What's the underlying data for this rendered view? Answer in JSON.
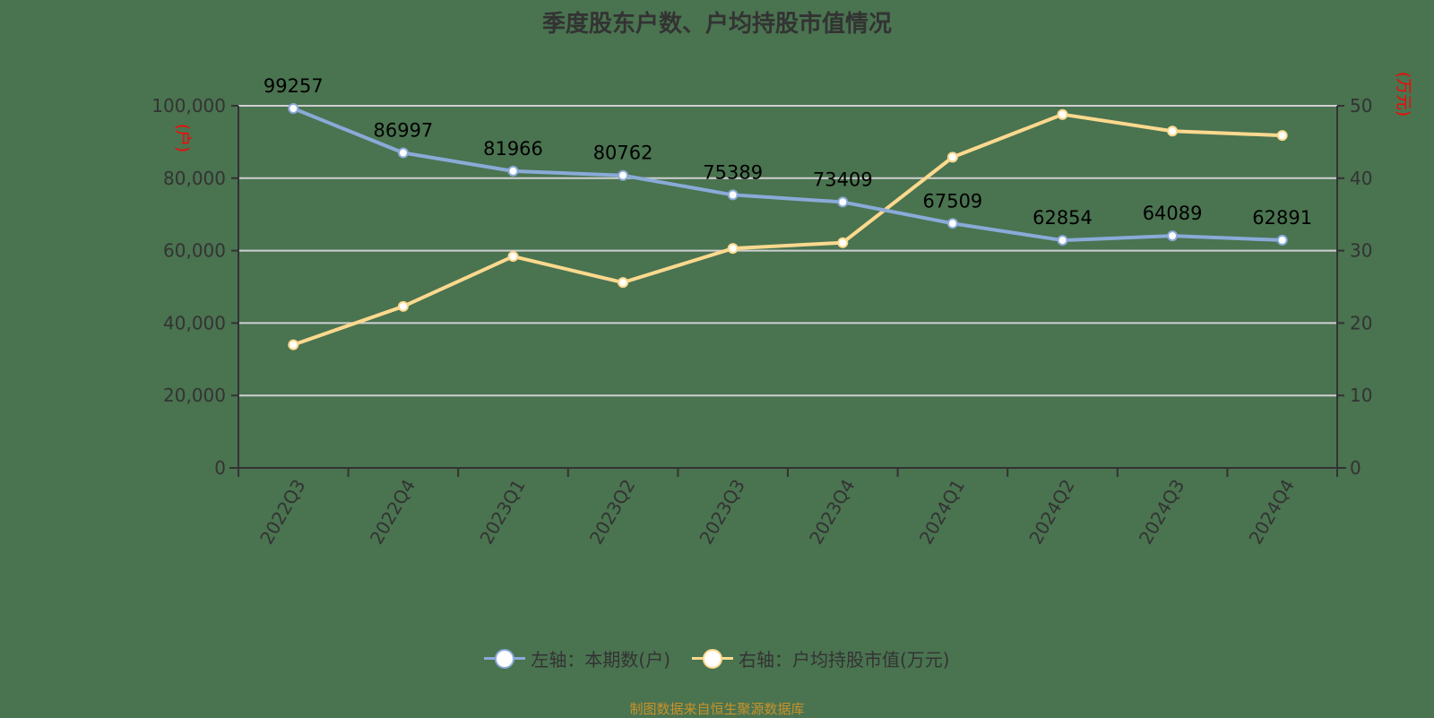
{
  "title": "季度股东户数、户均持股市值情况",
  "source_note": "制图数据来自恒生聚源数据库",
  "colors": {
    "background": "#4a7350",
    "left_series": "#8aaad8",
    "right_series": "#fdd98e",
    "gridline": "#d0d0d0",
    "axis": "#333333",
    "unit_label": "#ff0000",
    "source_note": "#c8922a"
  },
  "legend": [
    {
      "label": "左轴：本期数(户)",
      "color": "#8aaad8"
    },
    {
      "label": "右轴：户均持股市值(万元)",
      "color": "#fdd98e"
    }
  ],
  "chart_data": {
    "type": "line",
    "title": "季度股东户数、户均持股市值情况",
    "categories": [
      "2022Q3",
      "2022Q4",
      "2023Q1",
      "2023Q2",
      "2023Q3",
      "2023Q4",
      "2024Q1",
      "2024Q2",
      "2024Q3",
      "2024Q4"
    ],
    "series": [
      {
        "name": "左轴：本期数(户)",
        "axis": "left",
        "values": [
          99257,
          86997,
          81966,
          80762,
          75389,
          73409,
          67509,
          62854,
          64089,
          62891
        ],
        "data_labels": [
          "99257",
          "86997",
          "81966",
          "80762",
          "75389",
          "73409",
          "67509",
          "62854",
          "64089",
          "62891"
        ]
      },
      {
        "name": "右轴：户均持股市值(万元)",
        "axis": "right",
        "values": [
          17.0,
          22.3,
          29.2,
          25.6,
          30.3,
          31.1,
          42.9,
          48.8,
          46.5,
          45.9
        ]
      }
    ],
    "left_axis": {
      "unit": "(户)",
      "ylim": [
        0,
        100000
      ],
      "ticks": [
        "0",
        "20,000",
        "40,000",
        "60,000",
        "80,000",
        "100,000"
      ]
    },
    "right_axis": {
      "unit": "(万元)",
      "ylim": [
        0,
        50
      ],
      "ticks": [
        "0",
        "10",
        "20",
        "30",
        "40",
        "50"
      ]
    },
    "xlabel": "",
    "grid": true,
    "legend_position": "bottom"
  }
}
